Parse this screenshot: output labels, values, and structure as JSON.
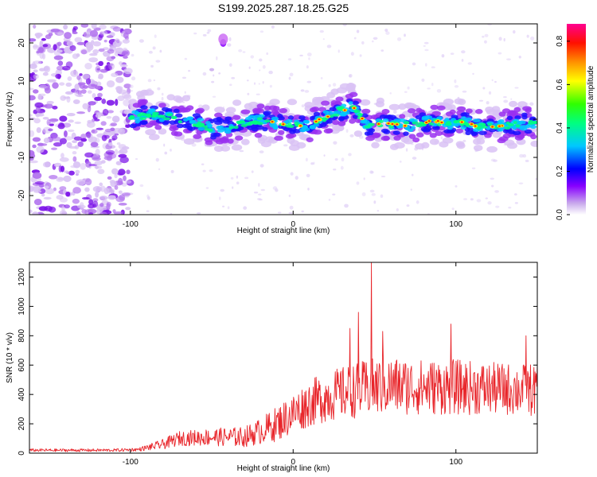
{
  "title": "S199.2025.287.18.25.G25",
  "chart_data": [
    {
      "type": "heatmap",
      "name": "spectrogram",
      "xlabel": "Height of straight line (km)",
      "ylabel": "Frequency (Hz)",
      "xlim": [
        -162,
        150
      ],
      "ylim": [
        -25,
        25
      ],
      "xticks": [
        -100,
        0,
        100
      ],
      "xtick_labels": [
        "-100",
        "0",
        "100"
      ],
      "yticks": [
        -20,
        -10,
        0,
        10,
        20
      ],
      "ytick_labels": [
        "-20",
        "-10",
        "0",
        "10",
        "20"
      ],
      "ridge_x": [
        -100,
        -90,
        -80,
        -70,
        -60,
        -50,
        -40,
        -30,
        -20,
        -10,
        0,
        10,
        20,
        30,
        37,
        45,
        55,
        65,
        75,
        85,
        95,
        105,
        115,
        125,
        135,
        145
      ],
      "ridge_freq": [
        0.5,
        1.0,
        1.0,
        0.0,
        -1.0,
        -2.5,
        -2.0,
        -1.0,
        -0.5,
        -1.0,
        -1.5,
        -1.5,
        0.5,
        2.5,
        3.0,
        -1.5,
        -1.0,
        -1.5,
        -1.5,
        -0.5,
        -1.0,
        -1.0,
        -2.0,
        -2.0,
        -1.5,
        -1.0
      ],
      "colorbar": {
        "label": "Normalized spectral amplitude",
        "range": [
          0,
          0.88
        ],
        "ticks": [
          0.0,
          0.2,
          0.4,
          0.6,
          0.8
        ],
        "tick_labels": [
          "0.0",
          "0.2",
          "0.4",
          "0.6",
          "0.8"
        ]
      }
    },
    {
      "type": "line",
      "name": "snr",
      "xlabel": "Height of straight line (km)",
      "ylabel": "SNR (10 * v/v)",
      "xlim": [
        -162,
        150
      ],
      "ylim": [
        0,
        1300
      ],
      "xticks": [
        -100,
        0,
        100
      ],
      "xtick_labels": [
        "-100",
        "0",
        "100"
      ],
      "yticks": [
        0,
        200,
        400,
        600,
        800,
        1000,
        1200
      ],
      "ytick_labels": [
        "0",
        "200",
        "400",
        "600",
        "800",
        "1000",
        "1200"
      ],
      "color": "#e8252a",
      "envelope_x": [
        -162,
        -110,
        -95,
        -80,
        -70,
        -50,
        -30,
        -20,
        -10,
        0,
        10,
        20,
        30,
        40,
        50,
        60,
        80,
        100,
        120,
        150
      ],
      "envelope_mean": [
        20,
        20,
        25,
        60,
        100,
        110,
        110,
        150,
        200,
        270,
        340,
        380,
        410,
        430,
        450,
        460,
        450,
        450,
        440,
        430
      ],
      "envelope_spread": [
        10,
        10,
        12,
        35,
        50,
        60,
        70,
        90,
        120,
        140,
        160,
        170,
        180,
        190,
        200,
        200,
        190,
        190,
        180,
        180
      ],
      "spikes": [
        {
          "x": 48,
          "y": 1300
        },
        {
          "x": 40,
          "y": 960
        },
        {
          "x": 55,
          "y": 830
        },
        {
          "x": 97,
          "y": 880
        },
        {
          "x": 143,
          "y": 800
        },
        {
          "x": 35,
          "y": 850
        }
      ]
    }
  ]
}
